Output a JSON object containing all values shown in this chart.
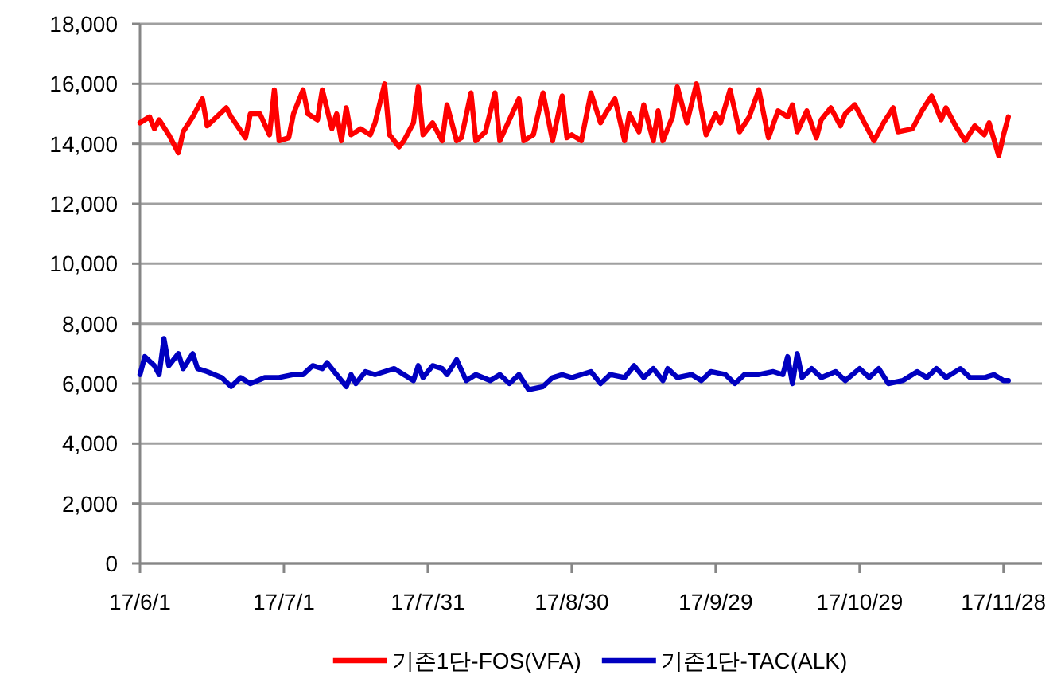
{
  "chart_data": {
    "type": "line",
    "xlim": [
      "--06-01",
      "--12-06"
    ],
    "xticks": [
      {
        "value": "--06-01",
        "label": "17/6/1"
      },
      {
        "value": "--07-01",
        "label": "17/7/1"
      },
      {
        "value": "--07-31",
        "label": "17/7/31"
      },
      {
        "value": "--08-30",
        "label": "17/8/30"
      },
      {
        "value": "--09-29",
        "label": "17/9/29"
      },
      {
        "value": "--10-29",
        "label": "17/10/29"
      },
      {
        "value": "--11-28",
        "label": "17/11/28"
      }
    ],
    "ylim": [
      0,
      18000
    ],
    "yticks": [
      {
        "value": 0,
        "label": "0"
      },
      {
        "value": 2000,
        "label": "2,000"
      },
      {
        "value": 4000,
        "label": "4,000"
      },
      {
        "value": 6000,
        "label": "6,000"
      },
      {
        "value": 8000,
        "label": "8,000"
      },
      {
        "value": 10000,
        "label": "10,000"
      },
      {
        "value": 12000,
        "label": "12,000"
      },
      {
        "value": 14000,
        "label": "14,000"
      },
      {
        "value": 16000,
        "label": "16,000"
      },
      {
        "value": 18000,
        "label": "18,000"
      }
    ],
    "grid": "y",
    "legend": "bottom",
    "series": [
      {
        "name": "기존1단-FOS(VFA)",
        "color": "#ff0000",
        "x": [
          "--06-01",
          "--06-03",
          "--06-04",
          "--06-05",
          "--06-07",
          "--06-09",
          "--06-10",
          "--06-12",
          "--06-14",
          "--06-15",
          "--06-17",
          "--06-19",
          "--06-20",
          "--06-23",
          "--06-24",
          "--06-26",
          "--06-28",
          "--06-29",
          "--06-30",
          "--07-02",
          "--07-03",
          "--07-05",
          "--07-06",
          "--07-08",
          "--07-09",
          "--07-11",
          "--07-12",
          "--07-13",
          "--07-14",
          "--07-15",
          "--07-17",
          "--07-19",
          "--07-20",
          "--07-22",
          "--07-23",
          "--07-25",
          "--07-26",
          "--07-28",
          "--07-29",
          "--07-30",
          "--08-01",
          "--08-03",
          "--08-04",
          "--08-06",
          "--08-07",
          "--08-09",
          "--08-10",
          "--08-12",
          "--08-14",
          "--08-15",
          "--08-17",
          "--08-19",
          "--08-20",
          "--08-22",
          "--08-24",
          "--08-26",
          "--08-28",
          "--08-29",
          "--08-30",
          "--09-01",
          "--09-03",
          "--09-05",
          "--09-06",
          "--09-08",
          "--09-10",
          "--09-11",
          "--09-13",
          "--09-14",
          "--09-16",
          "--09-17",
          "--09-18",
          "--09-20",
          "--09-21",
          "--09-23",
          "--09-25",
          "--09-27",
          "--09-29",
          "--09-30",
          "--10-02",
          "--10-04",
          "--10-06",
          "--10-08",
          "--10-10",
          "--10-12",
          "--10-14",
          "--10-15",
          "--10-16",
          "--10-18",
          "--10-20",
          "--10-21",
          "--10-23",
          "--10-25",
          "--10-26",
          "--10-28",
          "--10-30",
          "--11-01",
          "--11-03",
          "--11-05",
          "--11-06",
          "--11-09",
          "--11-11",
          "--11-13",
          "--11-15",
          "--11-16",
          "--11-18",
          "--11-20",
          "--11-22",
          "--11-24",
          "--11-25",
          "--11-27",
          "--11-28",
          "--11-29"
        ],
        "values": [
          14700,
          14900,
          14500,
          14800,
          14300,
          13700,
          14400,
          14900,
          15500,
          14600,
          14900,
          15200,
          14900,
          14200,
          15000,
          15000,
          14300,
          15800,
          14100,
          14200,
          15000,
          15800,
          15000,
          14800,
          15800,
          14500,
          15000,
          14100,
          15200,
          14300,
          14500,
          14300,
          14700,
          16000,
          14300,
          13900,
          14100,
          14700,
          15900,
          14300,
          14700,
          14100,
          15300,
          14100,
          14200,
          15700,
          14100,
          14400,
          15700,
          14100,
          14800,
          15500,
          14100,
          14300,
          15700,
          14100,
          15600,
          14200,
          14300,
          14100,
          15700,
          14700,
          15000,
          15500,
          14100,
          15000,
          14400,
          15300,
          14100,
          15100,
          14100,
          14900,
          15900,
          14700,
          16000,
          14300,
          15000,
          14700,
          15800,
          14400,
          14900,
          15800,
          14200,
          15100,
          14900,
          15300,
          14400,
          15100,
          14200,
          14800,
          15200,
          14600,
          15000,
          15300,
          14700,
          14100,
          14700,
          15200,
          14400,
          14500,
          15100,
          15600,
          14800,
          15200,
          14600,
          14100,
          14600,
          14300,
          14700,
          13600,
          14300,
          14900
        ]
      },
      {
        "name": "기존1단-TAC(ALK)",
        "color": "#0000c0",
        "x": [
          "--06-01",
          "--06-02",
          "--06-04",
          "--06-05",
          "--06-06",
          "--06-07",
          "--06-09",
          "--06-10",
          "--06-12",
          "--06-13",
          "--06-15",
          "--06-18",
          "--06-20",
          "--06-22",
          "--06-24",
          "--06-27",
          "--06-30",
          "--07-03",
          "--07-05",
          "--07-07",
          "--07-09",
          "--07-10",
          "--07-12",
          "--07-14",
          "--07-15",
          "--07-16",
          "--07-18",
          "--07-20",
          "--07-24",
          "--07-26",
          "--07-28",
          "--07-29",
          "--07-30",
          "--08-01",
          "--08-03",
          "--08-04",
          "--08-06",
          "--08-08",
          "--08-10",
          "--08-13",
          "--08-15",
          "--08-17",
          "--08-19",
          "--08-21",
          "--08-24",
          "--08-26",
          "--08-28",
          "--08-30",
          "--09-03",
          "--09-05",
          "--09-07",
          "--09-10",
          "--09-12",
          "--09-14",
          "--09-16",
          "--09-18",
          "--09-19",
          "--09-21",
          "--09-24",
          "--09-26",
          "--09-28",
          "--10-01",
          "--10-03",
          "--10-05",
          "--10-08",
          "--10-11",
          "--10-13",
          "--10-14",
          "--10-15",
          "--10-16",
          "--10-17",
          "--10-19",
          "--10-21",
          "--10-24",
          "--10-26",
          "--10-29",
          "--10-31",
          "--11-02",
          "--11-04",
          "--11-07",
          "--11-10",
          "--11-12",
          "--11-14",
          "--11-16",
          "--11-19",
          "--11-21",
          "--11-24",
          "--11-26",
          "--11-28",
          "--11-29"
        ],
        "values": [
          6300,
          6900,
          6600,
          6300,
          7500,
          6600,
          7000,
          6500,
          7000,
          6500,
          6400,
          6200,
          5900,
          6200,
          6000,
          6200,
          6200,
          6300,
          6300,
          6600,
          6500,
          6700,
          6300,
          5900,
          6300,
          6000,
          6400,
          6300,
          6500,
          6300,
          6100,
          6600,
          6200,
          6600,
          6500,
          6300,
          6800,
          6100,
          6300,
          6100,
          6300,
          6000,
          6300,
          5800,
          5900,
          6200,
          6300,
          6200,
          6400,
          6000,
          6300,
          6200,
          6600,
          6200,
          6500,
          6100,
          6500,
          6200,
          6300,
          6100,
          6400,
          6300,
          6000,
          6300,
          6300,
          6400,
          6300,
          6900,
          6000,
          7000,
          6200,
          6500,
          6200,
          6400,
          6100,
          6500,
          6200,
          6500,
          6000,
          6100,
          6400,
          6200,
          6500,
          6200,
          6500,
          6200,
          6200,
          6300,
          6100,
          6100
        ]
      }
    ]
  }
}
